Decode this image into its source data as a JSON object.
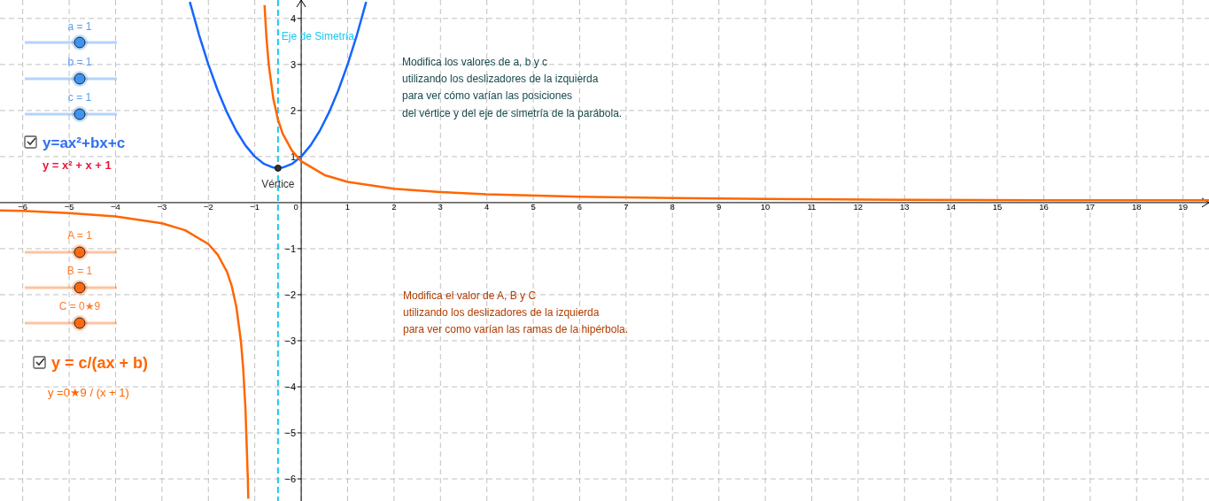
{
  "chart_data": {
    "type": "line",
    "xlim": [
      -6.49,
      19.56
    ],
    "ylim": [
      -6.48,
      4.4
    ],
    "xticks": [
      -6,
      -5,
      -4,
      -3,
      -2,
      -1,
      0,
      1,
      2,
      3,
      4,
      5,
      6,
      7,
      8,
      9,
      10,
      11,
      12,
      13,
      14,
      15,
      16,
      17,
      18,
      19
    ],
    "yticks": [
      -6,
      -5,
      -4,
      -3,
      -2,
      -1,
      1,
      2,
      3,
      4
    ],
    "grid": true,
    "line_style": "solid",
    "series": [
      {
        "color": "#1565ff",
        "x": [
          -2.4,
          -2.2,
          -2,
          -1.8,
          -1.6,
          -1.4,
          -1.2,
          -1,
          -0.8,
          -0.6,
          -0.5,
          -0.4,
          -0.2,
          0,
          0.2,
          0.4,
          0.6,
          0.8,
          1,
          1.2,
          1.4
        ],
        "values": [
          4.36,
          3.64,
          3,
          2.44,
          1.96,
          1.56,
          1.24,
          1,
          0.84,
          0.76,
          0.75,
          0.76,
          0.84,
          1,
          1.24,
          1.56,
          1.96,
          2.44,
          3,
          3.64,
          4.36
        ]
      },
      {
        "color": "#ff6600",
        "x": [
          -6.49,
          -6,
          -5,
          -4,
          -3,
          -2.5,
          -2,
          -1.8,
          -1.6,
          -1.5,
          -1.4,
          -1.3,
          -1.25,
          -1.2,
          -1.15,
          -1.14,
          -1,
          -0.79,
          -0.75,
          -0.7,
          -0.6,
          -0.5,
          -0.4,
          -0.2,
          0,
          0.5,
          1,
          2,
          3,
          4,
          6,
          8,
          10,
          13,
          16,
          19.56
        ],
        "values": [
          -0.17,
          -0.18,
          -0.23,
          -0.3,
          -0.45,
          -0.6,
          -0.9,
          -1.13,
          -1.5,
          -1.8,
          -2.25,
          -3,
          -3.6,
          -4.5,
          -6,
          -6.43,
          null,
          4.29,
          3.6,
          3,
          2.25,
          1.8,
          1.5,
          1.13,
          0.9,
          0.6,
          0.45,
          0.3,
          0.23,
          0.18,
          0.13,
          0.1,
          0.08,
          0.06,
          0.05,
          0.05
        ]
      },
      {
        "type": "scatter",
        "color": "#333333",
        "x": [
          -0.5
        ],
        "values": [
          0.75
        ]
      }
    ],
    "ref_lines": [
      {
        "axis": "x",
        "value": -0.5,
        "label": "Eje de Simetría",
        "color": "#1ec8f0",
        "line_style": "dashed"
      }
    ],
    "annotations": [
      "a = 1",
      "b = 1",
      "c = 1",
      "y=ax²+bx+c",
      "y = x² + x + 1",
      "Modifica los valores de a, b y c\nutilizando los deslizadores de la izquierda\npara ver cómo varían las posiciones\ndel vértice y del eje de simetría de la parábola.",
      "A = 1",
      "B = 1",
      "C = 0★9",
      "y = c/(ax + b)",
      "y =0★9 / (x + 1)",
      "Modifica el valor de A, B y C\nutilizando los deslizadores de la izquierda\npara ver como varían las ramas de la hipérbola.",
      {
        "text": "Vértice",
        "x": -0.5,
        "y": 0.75
      }
    ]
  }
}
